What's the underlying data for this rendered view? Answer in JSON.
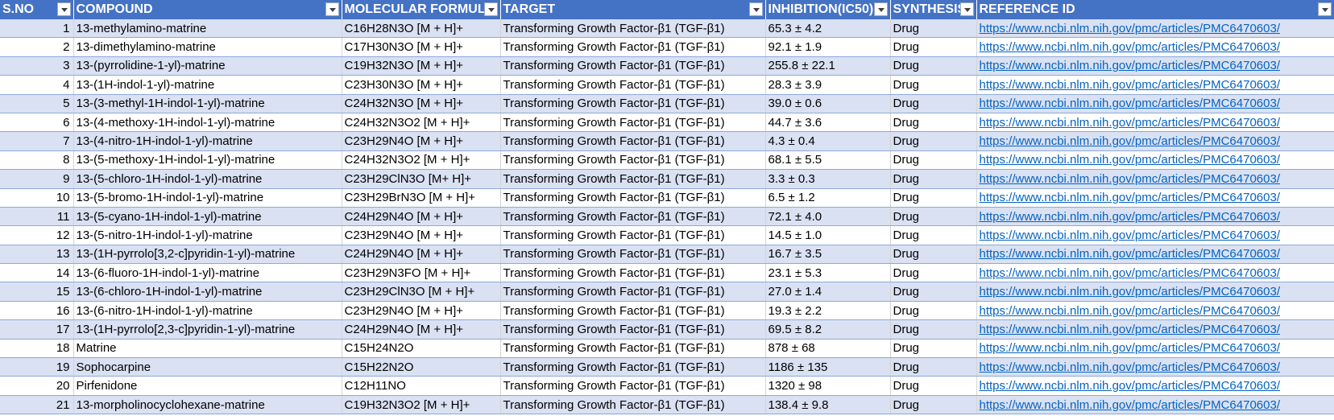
{
  "headers": [
    "S.NO",
    "COMPOUND",
    "MOLECULAR FORMULA",
    "TARGET",
    "INHIBITION(IC50)",
    "SYNTHESIS",
    "REFERENCE ID"
  ],
  "rows": [
    [
      "1",
      "13-methylamino-matrine",
      "C16H28N3O [M + H]+",
      "Transforming Growth Factor-β1 (TGF-β1)",
      "65.3 ± 4.2",
      "Drug",
      "https://www.ncbi.nlm.nih.gov/pmc/articles/PMC6470603/"
    ],
    [
      "2",
      "13-dimethylamino-matrine",
      "C17H30N3O [M + H]+",
      "Transforming Growth Factor-β1 (TGF-β1)",
      "92.1 ± 1.9",
      "Drug",
      "https://www.ncbi.nlm.nih.gov/pmc/articles/PMC6470603/"
    ],
    [
      "3",
      "13-(pyrrolidine-1-yl)-matrine",
      "C19H32N3O [M + H]+",
      "Transforming Growth Factor-β1 (TGF-β1)",
      "255.8 ± 22.1",
      "Drug",
      "https://www.ncbi.nlm.nih.gov/pmc/articles/PMC6470603/"
    ],
    [
      "4",
      "13-(1H-indol-1-yl)-matrine",
      "C23H30N3O [M + H]+",
      "Transforming Growth Factor-β1 (TGF-β1)",
      "28.3 ± 3.9",
      "Drug",
      "https://www.ncbi.nlm.nih.gov/pmc/articles/PMC6470603/"
    ],
    [
      "5",
      "13-(3-methyl-1H-indol-1-yl)-matrine",
      "C24H32N3O [M + H]+",
      "Transforming Growth Factor-β1 (TGF-β1)",
      "39.0 ± 0.6",
      "Drug",
      "https://www.ncbi.nlm.nih.gov/pmc/articles/PMC6470603/"
    ],
    [
      "6",
      "13-(4-methoxy-1H-indol-1-yl)-matrine",
      "C24H32N3O2 [M + H]+",
      "Transforming Growth Factor-β1 (TGF-β1)",
      "44.7 ± 3.6",
      "Drug",
      "https://www.ncbi.nlm.nih.gov/pmc/articles/PMC6470603/"
    ],
    [
      "7",
      "13-(4-nitro-1H-indol-1-yl)-matrine",
      "C23H29N4O [M + H]+",
      "Transforming Growth Factor-β1 (TGF-β1)",
      "4.3 ± 0.4",
      "Drug",
      "https://www.ncbi.nlm.nih.gov/pmc/articles/PMC6470603/"
    ],
    [
      "8",
      "13-(5-methoxy-1H-indol-1-yl)-matrine",
      "C24H32N3O2 [M + H]+",
      "Transforming Growth Factor-β1 (TGF-β1)",
      "68.1 ± 5.5",
      "Drug",
      "https://www.ncbi.nlm.nih.gov/pmc/articles/PMC6470603/"
    ],
    [
      "9",
      "13-(5-chloro-1H-indol-1-yl)-matrine",
      "C23H29ClN3O [M+ H]+",
      "Transforming Growth Factor-β1 (TGF-β1)",
      "3.3 ± 0.3",
      "Drug",
      "https://www.ncbi.nlm.nih.gov/pmc/articles/PMC6470603/"
    ],
    [
      "10",
      "13-(5-bromo-1H-indol-1-yl)-matrine",
      "C23H29BrN3O [M + H]+",
      "Transforming Growth Factor-β1 (TGF-β1)",
      "6.5 ± 1.2",
      "Drug",
      "https://www.ncbi.nlm.nih.gov/pmc/articles/PMC6470603/"
    ],
    [
      "11",
      "13-(5-cyano-1H-indol-1-yl)-matrine",
      "C24H29N4O [M + H]+",
      "Transforming Growth Factor-β1 (TGF-β1)",
      "72.1 ± 4.0",
      "Drug",
      "https://www.ncbi.nlm.nih.gov/pmc/articles/PMC6470603/"
    ],
    [
      "12",
      "13-(5-nitro-1H-indol-1-yl)-matrine",
      "C23H29N4O [M + H]+",
      "Transforming Growth Factor-β1 (TGF-β1)",
      "14.5 ± 1.0",
      "Drug",
      "https://www.ncbi.nlm.nih.gov/pmc/articles/PMC6470603/"
    ],
    [
      "13",
      "13-(1H-pyrrolo[3,2-c]pyridin-1-yl)-matrine",
      "C24H29N4O [M + H]+",
      "Transforming Growth Factor-β1 (TGF-β1)",
      "16.7 ± 3.5",
      "Drug",
      "https://www.ncbi.nlm.nih.gov/pmc/articles/PMC6470603/"
    ],
    [
      "14",
      "13-(6-fluoro-1H-indol-1-yl)-matrine",
      "C23H29N3FO [M + H]+",
      "Transforming Growth Factor-β1 (TGF-β1)",
      "23.1 ± 5.3",
      "Drug",
      "https://www.ncbi.nlm.nih.gov/pmc/articles/PMC6470603/"
    ],
    [
      "15",
      "13-(6-chloro-1H-indol-1-yl)-matrine",
      "C23H29ClN3O [M + H]+",
      "Transforming Growth Factor-β1 (TGF-β1)",
      "27.0 ± 1.4",
      "Drug",
      "https://www.ncbi.nlm.nih.gov/pmc/articles/PMC6470603/"
    ],
    [
      "16",
      "13-(6-nitro-1H-indol-1-yl)-matrine",
      "C23H29N4O [M + H]+",
      "Transforming Growth Factor-β1 (TGF-β1)",
      "19.3 ± 2.2",
      "Drug",
      "https://www.ncbi.nlm.nih.gov/pmc/articles/PMC6470603/"
    ],
    [
      "17",
      "13-(1H-pyrrolo[2,3-c]pyridin-1-yl)-matrine",
      "C24H29N4O [M + H]+",
      "Transforming Growth Factor-β1 (TGF-β1)",
      "69.5 ± 8.2",
      "Drug",
      "https://www.ncbi.nlm.nih.gov/pmc/articles/PMC6470603/"
    ],
    [
      "18",
      "Matrine",
      "C15H24N2O",
      "Transforming Growth Factor-β1 (TGF-β1)",
      "878 ± 68",
      "Drug",
      "https://www.ncbi.nlm.nih.gov/pmc/articles/PMC6470603/"
    ],
    [
      "19",
      "Sophocarpine",
      "C15H22N2O",
      "Transforming Growth Factor-β1 (TGF-β1)",
      "1186 ± 135",
      "Drug",
      "https://www.ncbi.nlm.nih.gov/pmc/articles/PMC6470603/"
    ],
    [
      "20",
      "Pirfenidone",
      "C12H11NO",
      "Transforming Growth Factor-β1 (TGF-β1)",
      "1320 ± 98",
      "Drug",
      "https://www.ncbi.nlm.nih.gov/pmc/articles/PMC6470603/"
    ],
    [
      "21",
      "13-morpholinocyclohexane-matrine",
      "C19H32N3O2 [M + H]+",
      "Transforming Growth Factor-β1 (TGF-β1)",
      "138.4 ± 9.8",
      "Drug",
      "https://www.ncbi.nlm.nih.gov/pmc/articles/PMC6470603/"
    ]
  ],
  "colors": {
    "header_bg": "#4472c4",
    "band": "#d9e1f2",
    "link": "#0563c1"
  },
  "icons": {
    "filter": "filter-dropdown-icon"
  }
}
